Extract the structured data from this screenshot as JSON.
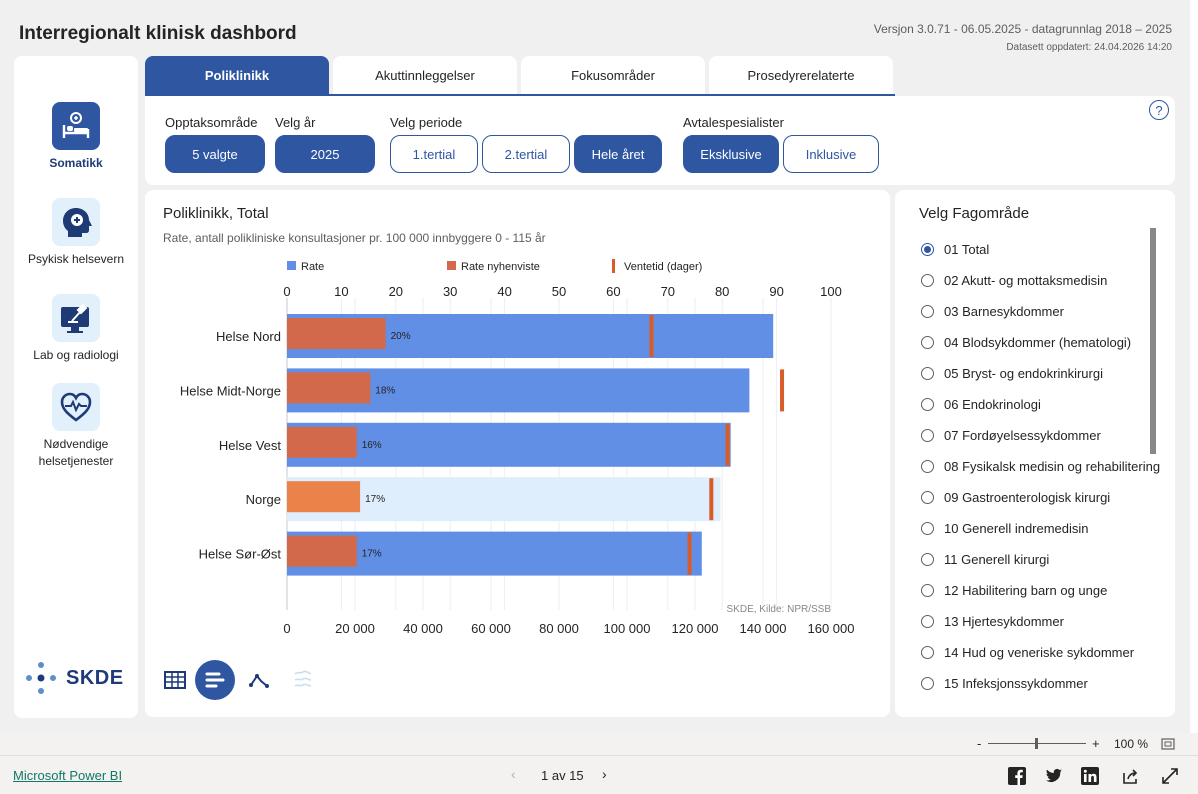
{
  "header": {
    "title": "Interregionalt klinisk dashbord",
    "version": "Versjon 3.0.71 - 06.05.2025 - datagrunnlag 2018 – 2025",
    "updated": "Datasett oppdatert: 24.04.2026 14:20"
  },
  "nav": {
    "items": [
      {
        "label": "Somatikk",
        "icon": "hospital-bed-icon",
        "active": true
      },
      {
        "label": "Psykisk helsevern",
        "icon": "head-plus-icon",
        "active": false
      },
      {
        "label": "Lab og radiologi",
        "icon": "monitor-microscope-icon",
        "active": false
      },
      {
        "label": "Nødvendige helsetjenester",
        "icon": "heart-pulse-icon",
        "active": false
      }
    ],
    "logo_text": "SKDE"
  },
  "tabs": [
    {
      "label": "Poliklinikk",
      "active": true
    },
    {
      "label": "Akuttinnleggelser",
      "active": false
    },
    {
      "label": "Fokusområder",
      "active": false
    },
    {
      "label": "Prosedyrerelaterte",
      "active": false
    }
  ],
  "filters": {
    "opptak": {
      "label": "Opptaksområde",
      "value": "5 valgte"
    },
    "year": {
      "label": "Velg år",
      "value": "2025"
    },
    "period": {
      "label": "Velg periode",
      "options": [
        "1.tertial",
        "2.tertial",
        "Hele året"
      ],
      "selected": "Hele året"
    },
    "avtale": {
      "label": "Avtalespesialister",
      "options": [
        "Eksklusive",
        "Inklusive"
      ],
      "selected": "Eksklusive"
    },
    "help": "?"
  },
  "chart": {
    "title": "Poliklinikk, Total",
    "subtitle": "Rate, antall polikliniske konsultasjoner pr. 100 000 innbyggere 0 - 115 år",
    "source": "SKDE, Kilde: NPR/SSB"
  },
  "chart_data": {
    "type": "bar",
    "orientation": "horizontal",
    "categories": [
      "Helse Nord",
      "Helse Midt-Norge",
      "Helse Vest",
      "Norge",
      "Helse Sør-Øst"
    ],
    "series": [
      {
        "name": "Rate",
        "values": [
          143000,
          136000,
          130500,
          127500,
          122000
        ],
        "color": "#628fe6",
        "highlight_color": "#deeefc"
      },
      {
        "name": "Rate nyhenviste",
        "values": [
          29000,
          24500,
          20500,
          21500,
          20500
        ],
        "color": "#d2694a",
        "highlight_color": "#ea8249",
        "labels": [
          "20%",
          "18%",
          "16%",
          "17%",
          "17%"
        ]
      },
      {
        "name": "Ventetid (dager)",
        "values": [
          67,
          91,
          81,
          78,
          74
        ],
        "color": "#d85c28"
      }
    ],
    "highlight_category": "Norge",
    "x_top": {
      "ticks": [
        "0",
        "10",
        "20",
        "30",
        "40",
        "50",
        "60",
        "70",
        "80",
        "90",
        "100"
      ],
      "range": [
        0,
        100
      ]
    },
    "x_bottom": {
      "ticks": [
        "0",
        "20 000",
        "40 000",
        "60 000",
        "80 000",
        "100 000",
        "120 000",
        "140 000",
        "160 000"
      ],
      "range": [
        0,
        160000
      ]
    },
    "grid": true,
    "legend_position": "top"
  },
  "view_buttons": [
    {
      "icon": "table-icon",
      "active": false
    },
    {
      "icon": "bar-chart-icon",
      "active": true
    },
    {
      "icon": "line-chart-icon",
      "active": false
    },
    {
      "icon": "map-icon",
      "active": false
    }
  ],
  "fagomrade": {
    "title": "Velg Fagområde",
    "items": [
      "01 Total",
      "02 Akutt- og mottaksmedisin",
      "03 Barnesykdommer",
      "04 Blodsykdommer (hematologi)",
      "05 Bryst- og endokrinkirurgi",
      "06 Endokrinologi",
      "07 Fordøyelsessykdommer",
      "08 Fysikalsk medisin og rehabilitering",
      "09 Gastroenterologisk kirurgi",
      "10 Generell indremedisin",
      "11 Generell kirurgi",
      "12 Habilitering barn og unge",
      "13 Hjertesykdommer",
      "14 Hud og veneriske sykdommer",
      "15 Infeksjonssykdommer"
    ],
    "selected": 0
  },
  "zoom": {
    "minus": "-",
    "plus": "+",
    "level": "100 %",
    "value_percent": 100
  },
  "footer": {
    "link": "Microsoft Power BI",
    "pager_prev": "‹",
    "pager_text": "1 av 15",
    "pager_next": "›",
    "share_icons": [
      "facebook-icon",
      "twitter-icon",
      "linkedin-icon",
      "share-icon",
      "expand-icon"
    ]
  }
}
